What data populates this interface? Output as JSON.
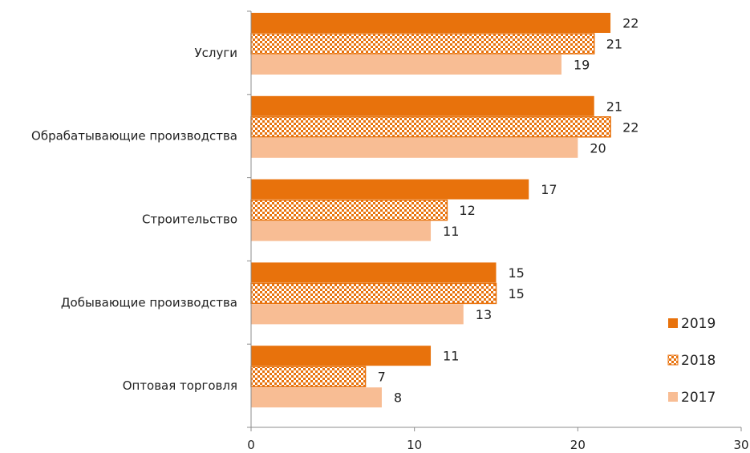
{
  "chart_data": {
    "type": "bar",
    "orientation": "horizontal",
    "categories": [
      "Услуги",
      "Обрабатывающие производства",
      "Строительство",
      "Добывающие производства",
      "Оптовая торговля"
    ],
    "series": [
      {
        "name": "2019",
        "values": [
          22,
          21,
          17,
          15,
          11
        ],
        "color": "#e8720c",
        "pattern": "solid"
      },
      {
        "name": "2018",
        "values": [
          21,
          22,
          12,
          15,
          7
        ],
        "color": "#e8720c",
        "pattern": "checker"
      },
      {
        "name": "2017",
        "values": [
          19,
          20,
          11,
          13,
          8
        ],
        "color": "#f8bd94",
        "pattern": "solid"
      }
    ],
    "title": "",
    "xlabel": "",
    "ylabel": "",
    "xlim": [
      0,
      30
    ],
    "xticks": [
      0,
      10,
      20,
      30
    ],
    "grid": false,
    "legend": "bottom-right"
  }
}
